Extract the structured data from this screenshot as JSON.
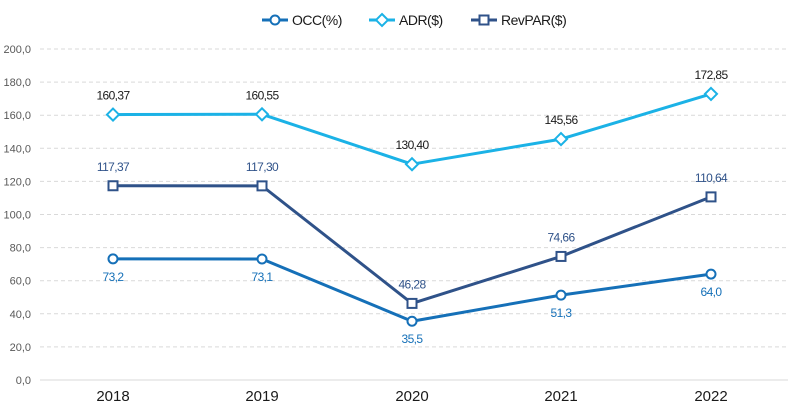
{
  "chart_data": {
    "type": "line",
    "title": "",
    "xlabel": "",
    "ylabel": "",
    "categories": [
      "2018",
      "2019",
      "2020",
      "2021",
      "2022"
    ],
    "ylim": [
      0,
      200
    ],
    "yticks": [
      0,
      20,
      40,
      60,
      80,
      100,
      120,
      140,
      160,
      180,
      200
    ],
    "ytick_labels": [
      "0,0",
      "20,0",
      "40,0",
      "60,0",
      "80,0",
      "100,0",
      "120,0",
      "140,0",
      "160,0",
      "180,0",
      "200,0"
    ],
    "grid": "horizontal-dashed",
    "legend_position": "top-center",
    "series": [
      {
        "name": "OCC(%)",
        "color": "#1570b8",
        "marker": "circle",
        "values": [
          73.2,
          73.1,
          35.5,
          51.3,
          64.0
        ],
        "labels": [
          "73,2",
          "73,1",
          "35,5",
          "51,3",
          "64,0"
        ],
        "label_position": "below",
        "label_color": "#1570b8"
      },
      {
        "name": "ADR($)",
        "color": "#1bb2e6",
        "marker": "diamond",
        "values": [
          160.37,
          160.55,
          130.4,
          145.56,
          172.85
        ],
        "labels": [
          "160,37",
          "160,55",
          "130,40",
          "145,56",
          "172,85"
        ],
        "label_position": "above",
        "label_color": "#1a1a1a"
      },
      {
        "name": "RevPAR($)",
        "color": "#2f5289",
        "marker": "square",
        "values": [
          117.37,
          117.3,
          46.28,
          74.66,
          110.64
        ],
        "labels": [
          "117,37",
          "117,30",
          "46,28",
          "74,66",
          "110,64"
        ],
        "label_position": "above",
        "label_color": "#2f5289"
      }
    ]
  }
}
